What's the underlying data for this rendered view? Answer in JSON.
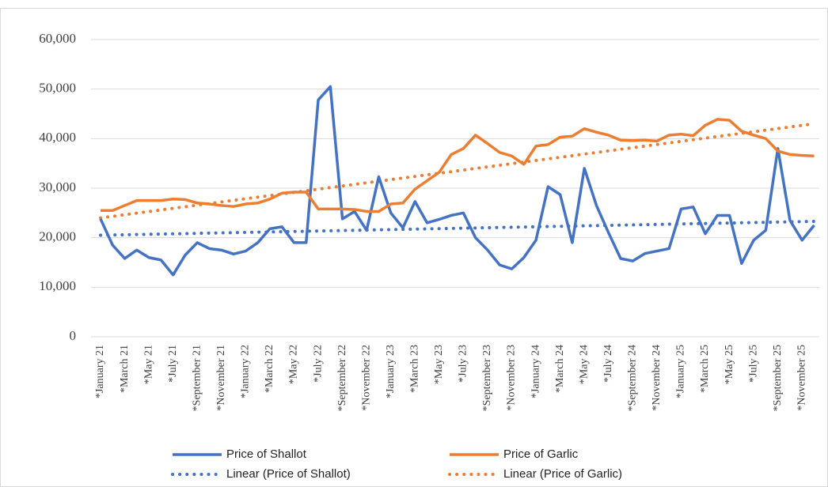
{
  "chart_data": {
    "type": "line",
    "categories": [
      "*January 21",
      null,
      "*March 21",
      null,
      "*May 21",
      null,
      "*July 21",
      null,
      "*September 21",
      null,
      "*November 21",
      null,
      "*January 22",
      null,
      "*March 22",
      null,
      "*May 22",
      null,
      "*July 22",
      null,
      "*September 22",
      null,
      "*November 22",
      null,
      "*January 23",
      null,
      "*March 23",
      null,
      "*May 23",
      null,
      "*July 23",
      null,
      "*September 23",
      null,
      "*November 23",
      null,
      "*January 24",
      null,
      "*March 24",
      null,
      "*May 24",
      null,
      "*July 24",
      null,
      "*September 24",
      null,
      "*November 24",
      null,
      "*January 25",
      null,
      "*March 25",
      null,
      "*May 25",
      null,
      "*July 25",
      null,
      "*September 25",
      null,
      "*November 25",
      null
    ],
    "series": [
      {
        "name": "Price of Shallot",
        "color": "#4472c4",
        "values": [
          23800,
          18500,
          15800,
          17500,
          16000,
          15500,
          12500,
          16500,
          19000,
          17800,
          17500,
          16700,
          17300,
          19000,
          21800,
          22200,
          19000,
          19000,
          47800,
          50500,
          23800,
          25300,
          21500,
          32300,
          25000,
          22000,
          27300,
          23000,
          23700,
          24500,
          25000,
          20000,
          17500,
          14500,
          13700,
          16000,
          19500,
          30300,
          28700,
          19000,
          34000,
          26500,
          21000,
          15800,
          15300,
          16800,
          17300,
          17800,
          25800,
          26200,
          20800,
          24500,
          24500,
          14800,
          19500,
          21500,
          38000,
          23500,
          19500,
          22500
        ]
      },
      {
        "name": "Price of Garlic",
        "color": "#ed7d31",
        "values": [
          25500,
          25500,
          26500,
          27500,
          27500,
          27500,
          27800,
          27700,
          27000,
          26800,
          26500,
          26300,
          26800,
          27000,
          27800,
          29000,
          29200,
          29200,
          25800,
          25800,
          25800,
          25700,
          25300,
          25300,
          26800,
          27000,
          29800,
          31500,
          33200,
          36800,
          38000,
          40700,
          39000,
          37200,
          36500,
          34800,
          38500,
          38800,
          40300,
          40500,
          42000,
          41300,
          40700,
          39700,
          39600,
          39700,
          39500,
          40700,
          40900,
          40600,
          42700,
          43900,
          43700,
          41500,
          40700,
          40000,
          37500,
          36800,
          36600,
          36500
        ]
      }
    ],
    "trendlines": [
      {
        "name": "Linear (Price of Shallot)",
        "color": "#4472c4",
        "start": 20500,
        "end": 23300
      },
      {
        "name": "Linear (Price of Garlic)",
        "color": "#ed7d31",
        "start": 24000,
        "end": 43000
      }
    ],
    "ylim": [
      0,
      60000
    ],
    "yticks": [
      0,
      {
        "value": 10000,
        "label": "10,000"
      },
      {
        "value": 20000,
        "label": "20,000"
      },
      {
        "value": 30000,
        "label": "30,000"
      },
      {
        "value": 40000,
        "label": "40,000"
      },
      {
        "value": 50000,
        "label": "50,000"
      },
      {
        "value": 60000,
        "label": "60,000"
      }
    ],
    "grid": true,
    "legend": "bottom"
  }
}
